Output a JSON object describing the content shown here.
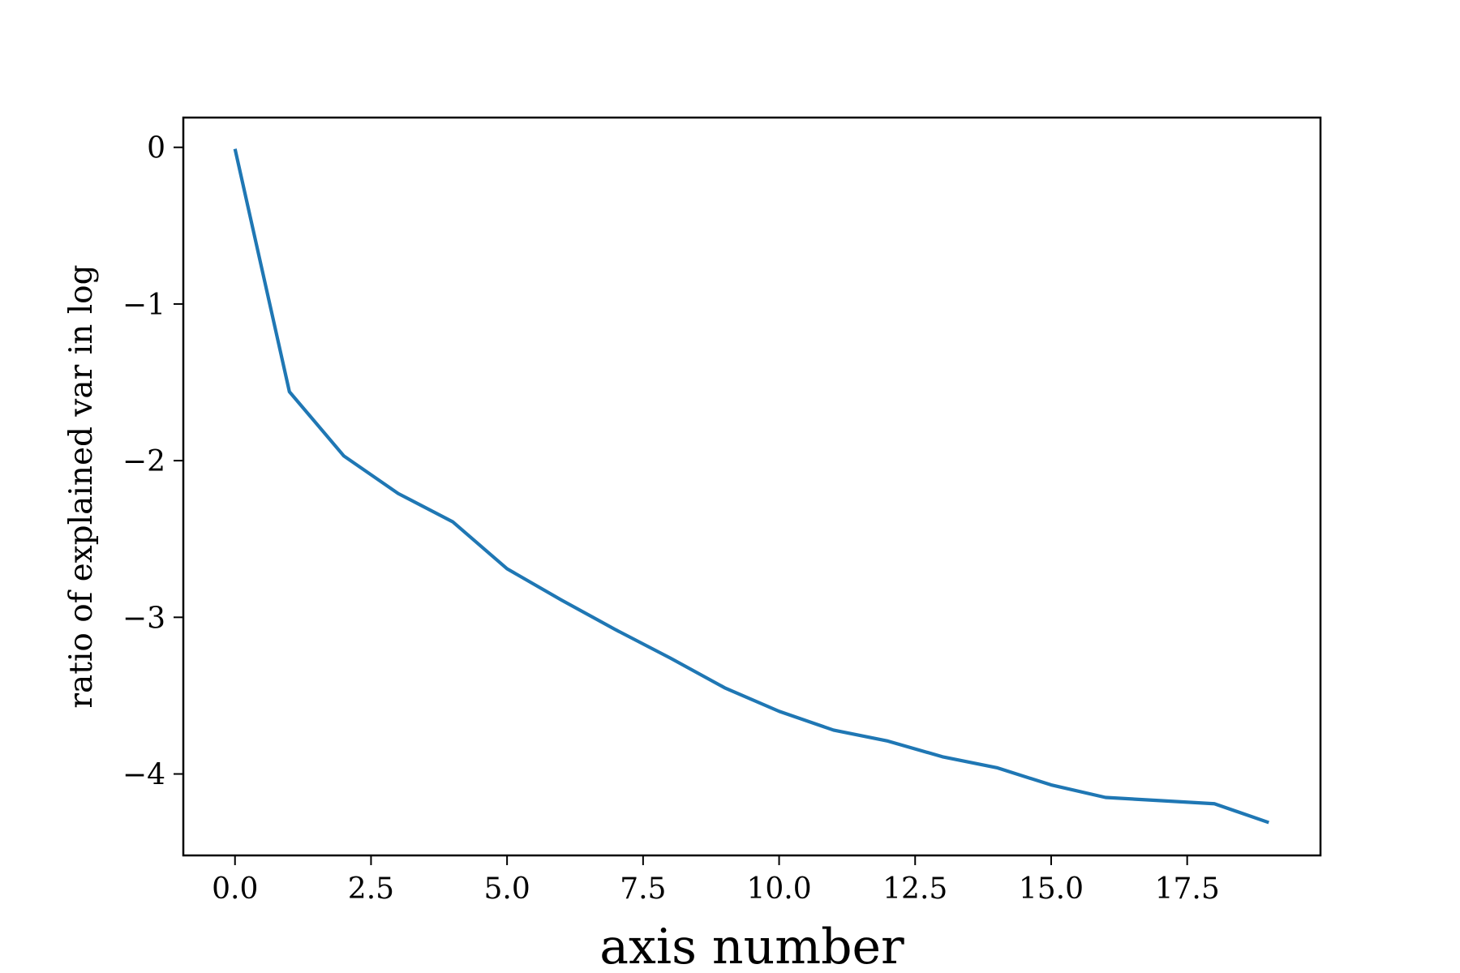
{
  "chart_data": {
    "type": "line",
    "title": "",
    "xlabel": "axis number",
    "ylabel": "ratio of explained var in log",
    "xlim": [
      -0.95,
      19.95
    ],
    "ylim": [
      -4.52,
      0.19
    ],
    "x_ticks": [
      0.0,
      2.5,
      5.0,
      7.5,
      10.0,
      12.5,
      15.0,
      17.5
    ],
    "x_tick_labels": [
      "0.0",
      "2.5",
      "5.0",
      "7.5",
      "10.0",
      "12.5",
      "15.0",
      "17.5"
    ],
    "y_ticks": [
      0,
      -1,
      -2,
      -3,
      -4
    ],
    "y_tick_labels": [
      "0",
      "−1",
      "−2",
      "−3",
      "−4"
    ],
    "grid": false,
    "legend": "none",
    "series": [
      {
        "color": "#1f77b4",
        "x": [
          0,
          1,
          2,
          3,
          4,
          5,
          6,
          7,
          8,
          9,
          10,
          11,
          12,
          13,
          14,
          15,
          16,
          17,
          18,
          19
        ],
        "values": [
          -0.01,
          -1.56,
          -1.97,
          -2.21,
          -2.39,
          -2.69,
          -2.89,
          -3.08,
          -3.26,
          -3.45,
          -3.6,
          -3.72,
          -3.79,
          -3.89,
          -3.96,
          -4.07,
          -4.15,
          -4.17,
          -4.19,
          -4.31
        ]
      }
    ]
  }
}
